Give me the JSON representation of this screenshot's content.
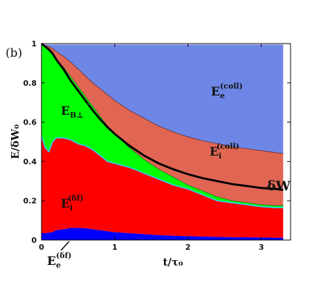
{
  "chart_data": {
    "type": "area",
    "panel_label": "(b)",
    "xlabel": "t/τ₀",
    "ylabel": "E/δW₀",
    "xlim": [
      0,
      3.4
    ],
    "ylim": [
      0,
      1
    ],
    "x_ticks": [
      "0",
      "1",
      "2",
      "3"
    ],
    "y_ticks": [
      "0",
      "0.2",
      "0.4",
      "0.6",
      "0.8",
      "1"
    ],
    "x": [
      0,
      0.05,
      0.1,
      0.15,
      0.2,
      0.3,
      0.4,
      0.5,
      0.6,
      0.7,
      0.8,
      0.9,
      1.0,
      1.2,
      1.4,
      1.6,
      1.8,
      2.0,
      2.2,
      2.4,
      2.6,
      2.8,
      3.0,
      3.2,
      3.3
    ],
    "series": [
      {
        "key": "ee_df",
        "color": "#0000ff",
        "values": [
          0.035,
          0.035,
          0.038,
          0.04,
          0.05,
          0.055,
          0.062,
          0.062,
          0.06,
          0.055,
          0.05,
          0.045,
          0.04,
          0.035,
          0.03,
          0.025,
          0.022,
          0.02,
          0.018,
          0.016,
          0.015,
          0.014,
          0.013,
          0.012,
          0.012
        ]
      },
      {
        "key": "ei_df",
        "color": "#ff0000",
        "values": [
          0.53,
          0.47,
          0.45,
          0.5,
          0.52,
          0.52,
          0.51,
          0.49,
          0.48,
          0.46,
          0.43,
          0.4,
          0.39,
          0.37,
          0.34,
          0.31,
          0.28,
          0.26,
          0.23,
          0.2,
          0.19,
          0.18,
          0.17,
          0.165,
          0.165
        ]
      },
      {
        "key": "eb_perp",
        "color": "#00ff00",
        "values": [
          1.0,
          0.98,
          0.97,
          0.95,
          0.92,
          0.88,
          0.83,
          0.78,
          0.73,
          0.68,
          0.63,
          0.58,
          0.54,
          0.47,
          0.41,
          0.36,
          0.32,
          0.28,
          0.25,
          0.22,
          0.2,
          0.19,
          0.18,
          0.175,
          0.175
        ]
      },
      {
        "key": "ei_coll",
        "color": "#e06653",
        "values": [
          1.0,
          0.99,
          0.985,
          0.975,
          0.96,
          0.935,
          0.905,
          0.87,
          0.835,
          0.8,
          0.77,
          0.74,
          0.71,
          0.66,
          0.62,
          0.58,
          0.55,
          0.525,
          0.505,
          0.49,
          0.475,
          0.465,
          0.455,
          0.445,
          0.44
        ]
      },
      {
        "key": "ee_coll",
        "color": "#6e86e6",
        "values": [
          1.0,
          0.995,
          0.995,
          0.995,
          0.995,
          0.995,
          0.995,
          0.995,
          0.995,
          0.995,
          0.995,
          0.995,
          0.995,
          0.995,
          0.995,
          0.995,
          0.995,
          0.995,
          0.995,
          0.995,
          0.995,
          0.995,
          0.995,
          0.995,
          0.995
        ]
      }
    ],
    "delta_w": {
      "color": "#000000",
      "values": [
        1.0,
        0.985,
        0.97,
        0.95,
        0.92,
        0.87,
        0.81,
        0.76,
        0.71,
        0.66,
        0.615,
        0.575,
        0.54,
        0.48,
        0.43,
        0.39,
        0.36,
        0.335,
        0.315,
        0.3,
        0.285,
        0.275,
        0.265,
        0.26,
        0.255
      ]
    },
    "annotations": [
      {
        "key": "ee_coll",
        "base": "E",
        "sub": "e",
        "sup": "(coll)"
      },
      {
        "key": "ei_coll",
        "base": "E",
        "sub": "i",
        "sup": "(coll)"
      },
      {
        "key": "eb_perp",
        "base": "E",
        "sub": "B⊥",
        "sup": ""
      },
      {
        "key": "ei_df",
        "base": "E",
        "sub": "i",
        "sup": "(δf)"
      },
      {
        "key": "ee_df",
        "base": "E",
        "sub": "e",
        "sup": "(δf)"
      },
      {
        "key": "delta_w",
        "base": "δW",
        "sub": "",
        "sup": ""
      }
    ]
  }
}
